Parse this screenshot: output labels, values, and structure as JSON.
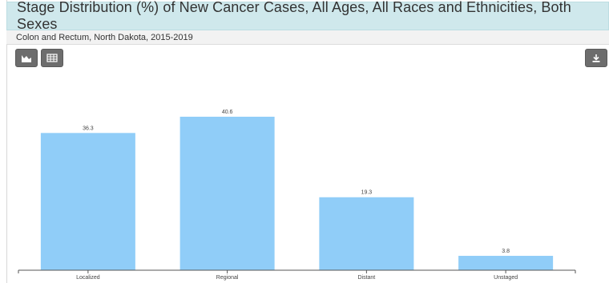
{
  "header": {
    "title": "Stage Distribution (%) of New Cancer Cases, All Ages, All Races and Ethnicities, Both Sexes",
    "subtitle": "Colon and Rectum, North Dakota, 2015-2019"
  },
  "toolbar": {
    "chart_view_icon": "bar-chart-icon",
    "table_view_icon": "table-icon",
    "download_icon": "download-icon"
  },
  "colors": {
    "bar": "#90cdf8",
    "title_bg": "#cfe8ec",
    "button_bg": "#6d6d6d"
  },
  "chart_data": {
    "type": "bar",
    "categories": [
      "Localized",
      "Regional",
      "Distant",
      "Unstaged"
    ],
    "values": [
      36.3,
      40.6,
      19.3,
      3.8
    ],
    "title": "",
    "xlabel": "",
    "ylabel": "",
    "ylim": [
      0,
      40.6
    ],
    "grid": false,
    "legend": "none"
  }
}
